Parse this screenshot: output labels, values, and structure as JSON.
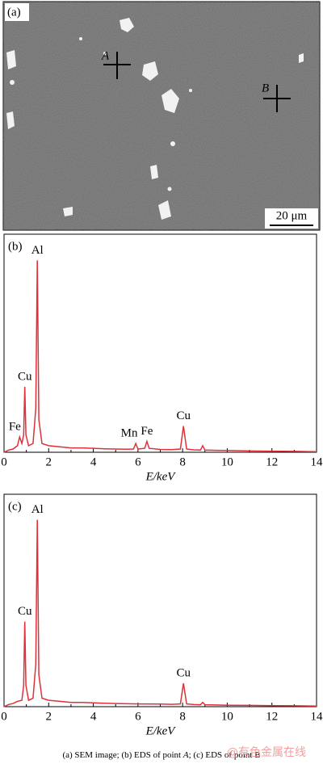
{
  "sem_image": {
    "label": "(a)",
    "points": [
      "A",
      "B"
    ],
    "scale_bar": "20 μm"
  },
  "chart_data": [
    {
      "type": "line",
      "panel_label": "(b)",
      "xlabel": "E/keV",
      "color": "#e0303a",
      "x": [
        0,
        0.2,
        0.4,
        0.6,
        0.7,
        0.8,
        0.88,
        0.93,
        0.98,
        1.1,
        1.3,
        1.42,
        1.49,
        1.56,
        1.7,
        2,
        2.5,
        3,
        3.5,
        4,
        4.5,
        5,
        5.5,
        5.8,
        5.9,
        6.0,
        6.3,
        6.4,
        6.5,
        7,
        7.5,
        7.9,
        8.04,
        8.18,
        8.5,
        8.8,
        8.9,
        9.0,
        9.5,
        10,
        11,
        12,
        13,
        14
      ],
      "values": [
        0,
        1,
        1.5,
        3,
        7,
        4,
        8,
        30,
        8,
        3,
        4,
        20,
        88,
        15,
        4,
        3,
        2.5,
        2,
        2,
        1.8,
        1.6,
        1.5,
        1.4,
        1.5,
        4,
        1.5,
        1.8,
        5,
        1.8,
        1.3,
        1.2,
        1.5,
        12,
        1.5,
        1.1,
        1,
        3,
        1,
        0.9,
        0.8,
        0.6,
        0.5,
        0.4,
        0.3
      ],
      "xlim": [
        0,
        14
      ],
      "xticks": [
        0,
        2,
        4,
        6,
        8,
        10,
        12,
        14
      ],
      "ylim": [
        0,
        100
      ],
      "annotations": [
        {
          "text": "Fe",
          "x": 0.7
        },
        {
          "text": "Cu",
          "x": 0.93
        },
        {
          "text": "Al",
          "x": 1.49
        },
        {
          "text": "Mn",
          "x": 5.9
        },
        {
          "text": "Fe",
          "x": 6.4
        },
        {
          "text": "Cu",
          "x": 8.04
        }
      ]
    },
    {
      "type": "line",
      "panel_label": "(c)",
      "xlabel": "E/keV",
      "color": "#e0303a",
      "x": [
        0,
        0.2,
        0.4,
        0.6,
        0.8,
        0.88,
        0.93,
        0.98,
        1.1,
        1.3,
        1.42,
        1.49,
        1.56,
        1.7,
        2,
        2.5,
        3,
        3.5,
        4,
        4.5,
        5,
        6,
        7,
        7.5,
        7.9,
        8.04,
        8.18,
        8.5,
        8.8,
        8.9,
        9.0,
        9.5,
        10,
        11,
        12,
        13,
        14
      ],
      "values": [
        0,
        1,
        1.5,
        2.5,
        3,
        10,
        40,
        10,
        3,
        4,
        20,
        88,
        15,
        4,
        3,
        2.5,
        2,
        2,
        1.8,
        1.6,
        1.5,
        1.3,
        1.2,
        1.1,
        1.3,
        11,
        1.3,
        1,
        0.9,
        2,
        0.9,
        0.8,
        0.7,
        0.6,
        0.5,
        0.4,
        0.3
      ],
      "xlim": [
        0,
        14
      ],
      "xticks": [
        0,
        2,
        4,
        6,
        8,
        10,
        12,
        14
      ],
      "ylim": [
        0,
        100
      ],
      "annotations": [
        {
          "text": "Cu",
          "x": 0.93
        },
        {
          "text": "Al",
          "x": 1.49
        },
        {
          "text": "Cu",
          "x": 8.04
        }
      ]
    }
  ],
  "caption": [
    "(a) SEM image; (b) EDS of  point ",
    "A",
    "; (c) EDS of point ",
    "B"
  ],
  "watermark": "@有色金属在线"
}
